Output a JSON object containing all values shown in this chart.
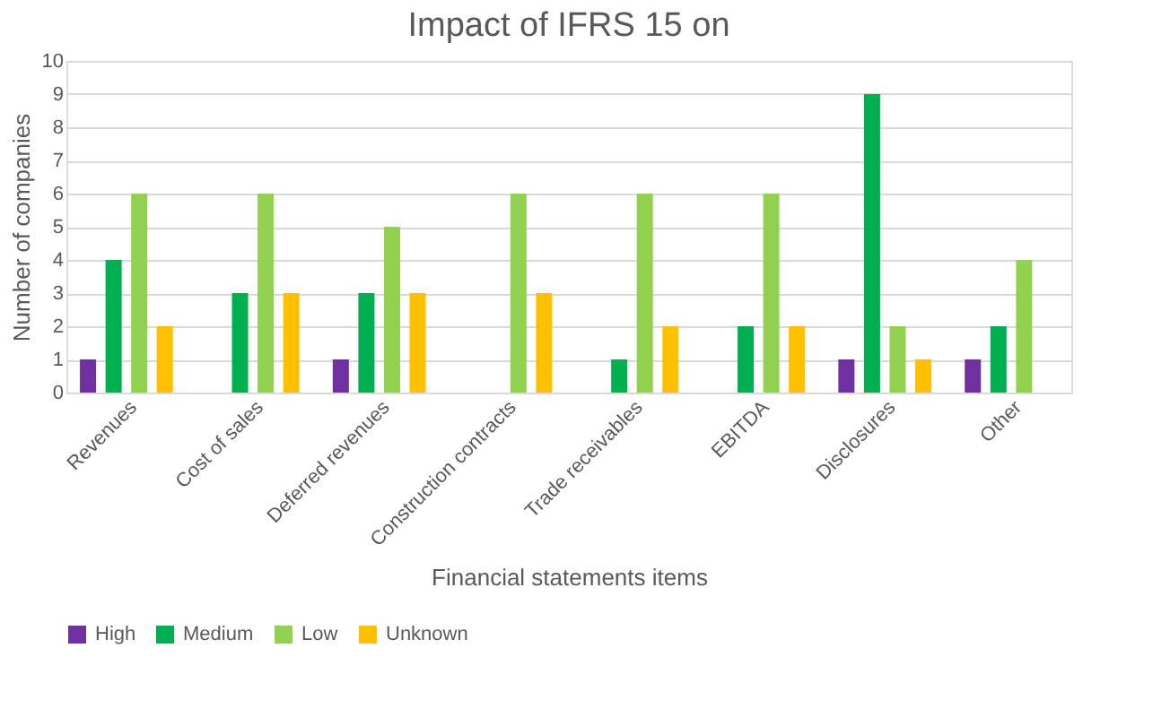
{
  "chart_data": {
    "type": "bar",
    "title": "Impact of IFRS 15 on",
    "xlabel": "Financial statements items",
    "ylabel": "Number of companies",
    "categories": [
      "Revenues",
      "Cost of sales",
      "Deferred revenues",
      "Construction contracts",
      "Trade receivables",
      "EBITDA",
      "Disclosures",
      "Other"
    ],
    "series": [
      {
        "name": "High",
        "color": "#7030a0",
        "values": [
          1,
          null,
          1,
          null,
          null,
          null,
          1,
          1
        ]
      },
      {
        "name": "Medium",
        "color": "#00b050",
        "values": [
          4,
          3,
          3,
          null,
          1,
          2,
          9,
          2
        ]
      },
      {
        "name": "Low",
        "color": "#92d050",
        "values": [
          6,
          6,
          5,
          6,
          6,
          6,
          2,
          4
        ]
      },
      {
        "name": "Unknown",
        "color": "#ffc000",
        "values": [
          2,
          3,
          3,
          3,
          2,
          2,
          1,
          null
        ]
      }
    ],
    "ylim": [
      0,
      10
    ],
    "yticks": [
      0,
      1,
      2,
      3,
      4,
      5,
      6,
      7,
      8,
      9,
      10
    ],
    "grid": "y",
    "legend": "bottom"
  }
}
